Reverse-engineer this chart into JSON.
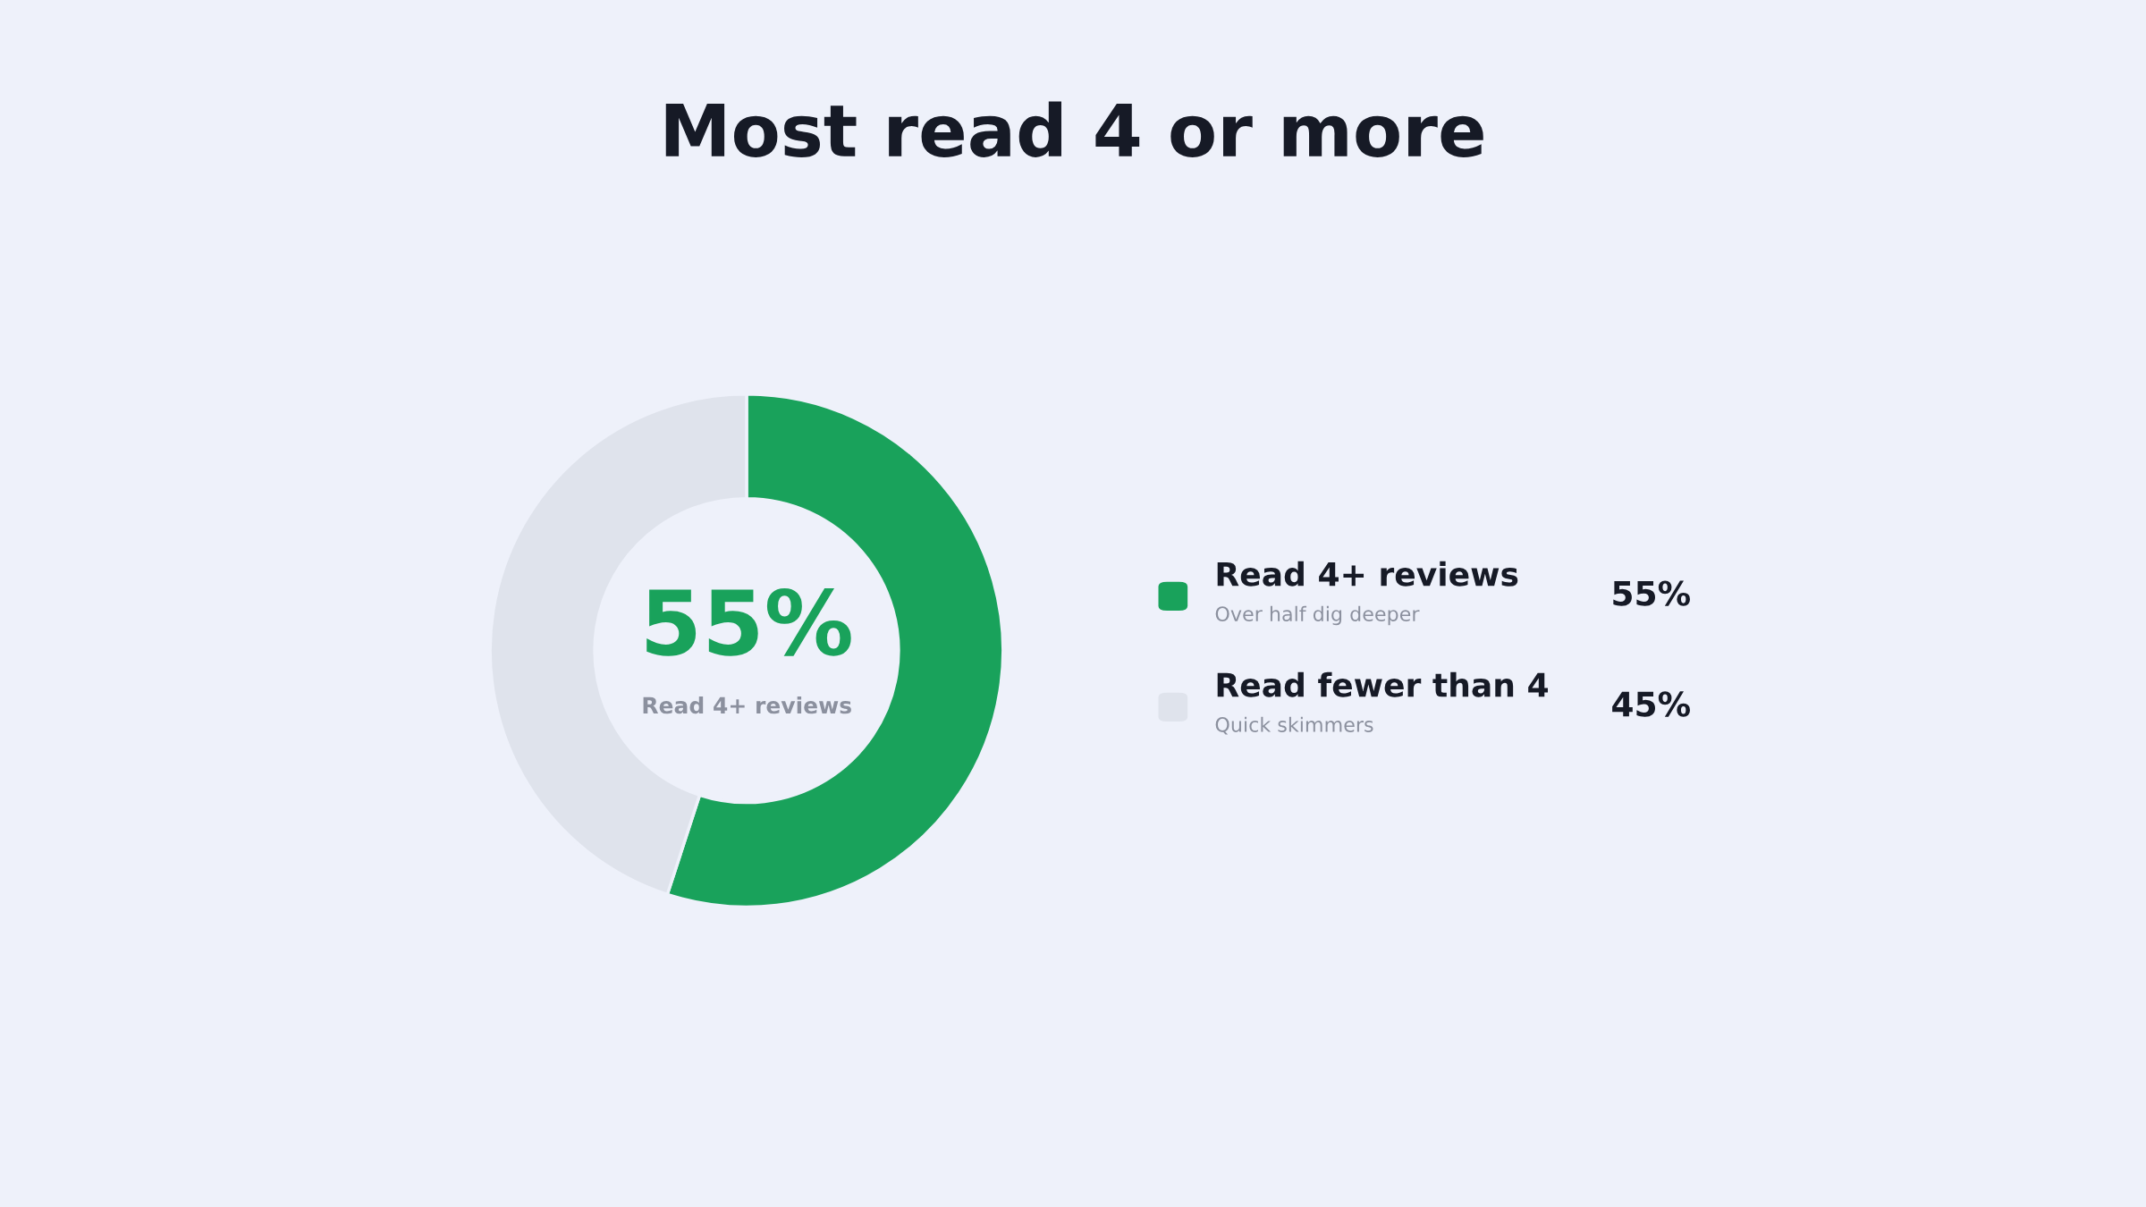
{
  "chart_data": {
    "type": "donut",
    "title": "Most read 4 or more",
    "categories": [
      "Read 4+ reviews",
      "Read fewer than 4"
    ],
    "values": [
      55,
      45
    ],
    "colors": [
      "#19a25b",
      "#dfe3ec"
    ],
    "value_labels": [
      "55%",
      "45%"
    ],
    "legend": "right",
    "annotations": [
      "55%",
      "Read 4+ reviews",
      "Over half dig deeper",
      "Quick skimmers"
    ]
  }
}
